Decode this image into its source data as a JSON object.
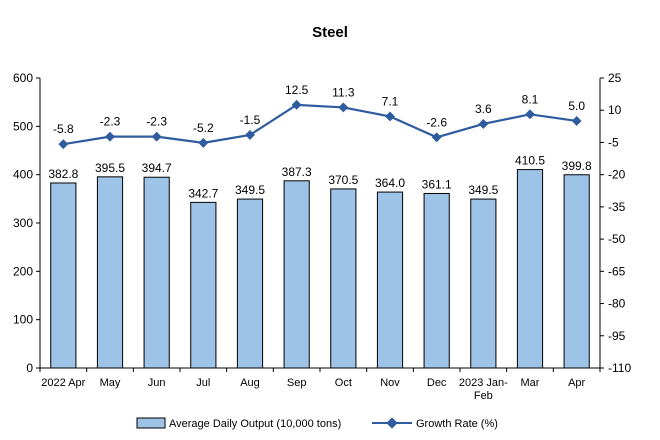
{
  "chart_data": {
    "type": "bar",
    "title": "Steel",
    "categories": [
      "2022 Apr",
      "May",
      "Jun",
      "Jul",
      "Aug",
      "Sep",
      "Oct",
      "Nov",
      "Dec",
      "2023 Jan-Feb",
      "Mar",
      "Apr"
    ],
    "series": [
      {
        "name": "Average Daily Output (10,000 tons)",
        "type": "bar",
        "axis": "left",
        "values": [
          382.8,
          395.5,
          394.7,
          342.7,
          349.5,
          387.3,
          370.5,
          364.0,
          361.1,
          349.5,
          410.5,
          399.8
        ],
        "labels": [
          "382.8",
          "395.5",
          "394.7",
          "342.7",
          "349.5",
          "387.3",
          "370.5",
          "364.0",
          "361.1",
          "349.5",
          "410.5",
          "399.8"
        ],
        "color": "#9dc3e6",
        "edge_color": "#000000"
      },
      {
        "name": "Growth Rate (%)",
        "type": "line",
        "axis": "right",
        "values": [
          -5.8,
          -2.3,
          -2.3,
          -5.2,
          -1.5,
          12.5,
          11.3,
          7.1,
          -2.6,
          3.6,
          8.1,
          5.0
        ],
        "labels": [
          "-5.8",
          "-2.3",
          "-2.3",
          "-5.2",
          "-1.5",
          "12.5",
          "11.3",
          "7.1",
          "-2.6",
          "3.6",
          "8.1",
          "5.0"
        ],
        "color": "#2e5c9e"
      }
    ],
    "y_left": {
      "min": 0,
      "max": 600,
      "ticks": [
        "0",
        "100",
        "200",
        "300",
        "400",
        "500",
        "600"
      ]
    },
    "y_right": {
      "min": -110,
      "max": 25,
      "ticks": [
        "-110",
        "-95",
        "-80",
        "-65",
        "-50",
        "-35",
        "-20",
        "-5",
        "10",
        "25"
      ]
    },
    "grid": false,
    "legend_position": "bottom"
  }
}
